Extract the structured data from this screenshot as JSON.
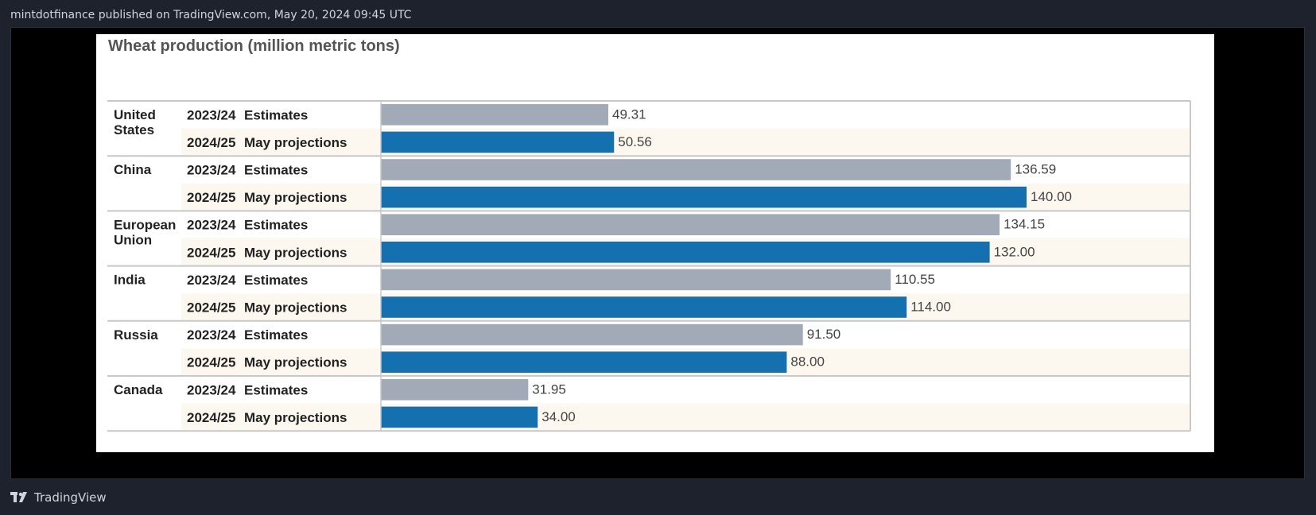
{
  "header": {
    "publish_text": "mintdotfinance published on TradingView.com, May 20, 2024 09:45 UTC"
  },
  "footer": {
    "brand": "TradingView"
  },
  "colors": {
    "estimate": "#a2aab8",
    "projection": "#1570b0",
    "row_alt": "#fdf8ef"
  },
  "chart_data": {
    "type": "bar",
    "orientation": "horizontal",
    "title": "Wheat production (million metric tons)",
    "xlim": [
      0,
      150
    ],
    "grid": false,
    "groups": [
      {
        "country": [
          "United",
          "States"
        ],
        "rows": [
          {
            "year": "2023/24",
            "kind": "Estimates",
            "value": 49.31,
            "label": "49.31"
          },
          {
            "year": "2024/25",
            "kind": "May projections",
            "value": 50.56,
            "label": "50.56"
          }
        ]
      },
      {
        "country": [
          "China"
        ],
        "rows": [
          {
            "year": "2023/24",
            "kind": "Estimates",
            "value": 136.59,
            "label": "136.59"
          },
          {
            "year": "2024/25",
            "kind": "May projections",
            "value": 140.0,
            "label": "140.00"
          }
        ]
      },
      {
        "country": [
          "European",
          "Union"
        ],
        "rows": [
          {
            "year": "2023/24",
            "kind": "Estimates",
            "value": 134.15,
            "label": "134.15"
          },
          {
            "year": "2024/25",
            "kind": "May projections",
            "value": 132.0,
            "label": "132.00"
          }
        ]
      },
      {
        "country": [
          "India"
        ],
        "rows": [
          {
            "year": "2023/24",
            "kind": "Estimates",
            "value": 110.55,
            "label": "110.55"
          },
          {
            "year": "2024/25",
            "kind": "May projections",
            "value": 114.0,
            "label": "114.00"
          }
        ]
      },
      {
        "country": [
          "Russia"
        ],
        "rows": [
          {
            "year": "2023/24",
            "kind": "Estimates",
            "value": 91.5,
            "label": "91.50"
          },
          {
            "year": "2024/25",
            "kind": "May projections",
            "value": 88.0,
            "label": "88.00"
          }
        ]
      },
      {
        "country": [
          "Canada"
        ],
        "rows": [
          {
            "year": "2023/24",
            "kind": "Estimates",
            "value": 31.95,
            "label": "31.95"
          },
          {
            "year": "2024/25",
            "kind": "May projections",
            "value": 34.0,
            "label": "34.00"
          }
        ]
      }
    ]
  }
}
